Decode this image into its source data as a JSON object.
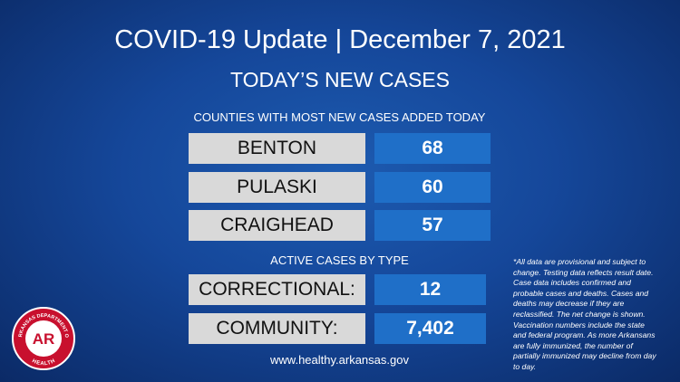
{
  "header": {
    "title": "COVID-19 Update | December 7, 2021",
    "subtitle": "TODAY’S NEW CASES"
  },
  "counties": {
    "heading": "COUNTIES WITH MOST NEW CASES ADDED TODAY",
    "rows": [
      [
        "BENTON",
        "68"
      ],
      [
        "PULASKI",
        "60"
      ],
      [
        "CRAIGHEAD",
        "57"
      ]
    ]
  },
  "active": {
    "heading": "ACTIVE CASES BY TYPE",
    "rows": [
      [
        "CORRECTIONAL:",
        "12"
      ],
      [
        "COMMUNITY:",
        "7,402"
      ]
    ]
  },
  "footer": {
    "url": "www.healthy.arkansas.gov"
  },
  "note": "*All data are provisional and subject to change. Testing data reflects result date. Case data includes confirmed and probable cases and deaths. Cases and deaths may decrease if they are reclassified. The net change is shown. Vaccination numbers include the state and federal program. As more Arkansans are fully immunized, the number of partially immunized may decline from day to day.",
  "logo": {
    "top": "ARKANSAS DEPARTMENT OF",
    "bottom": "HEALTH",
    "mark": "AR"
  }
}
